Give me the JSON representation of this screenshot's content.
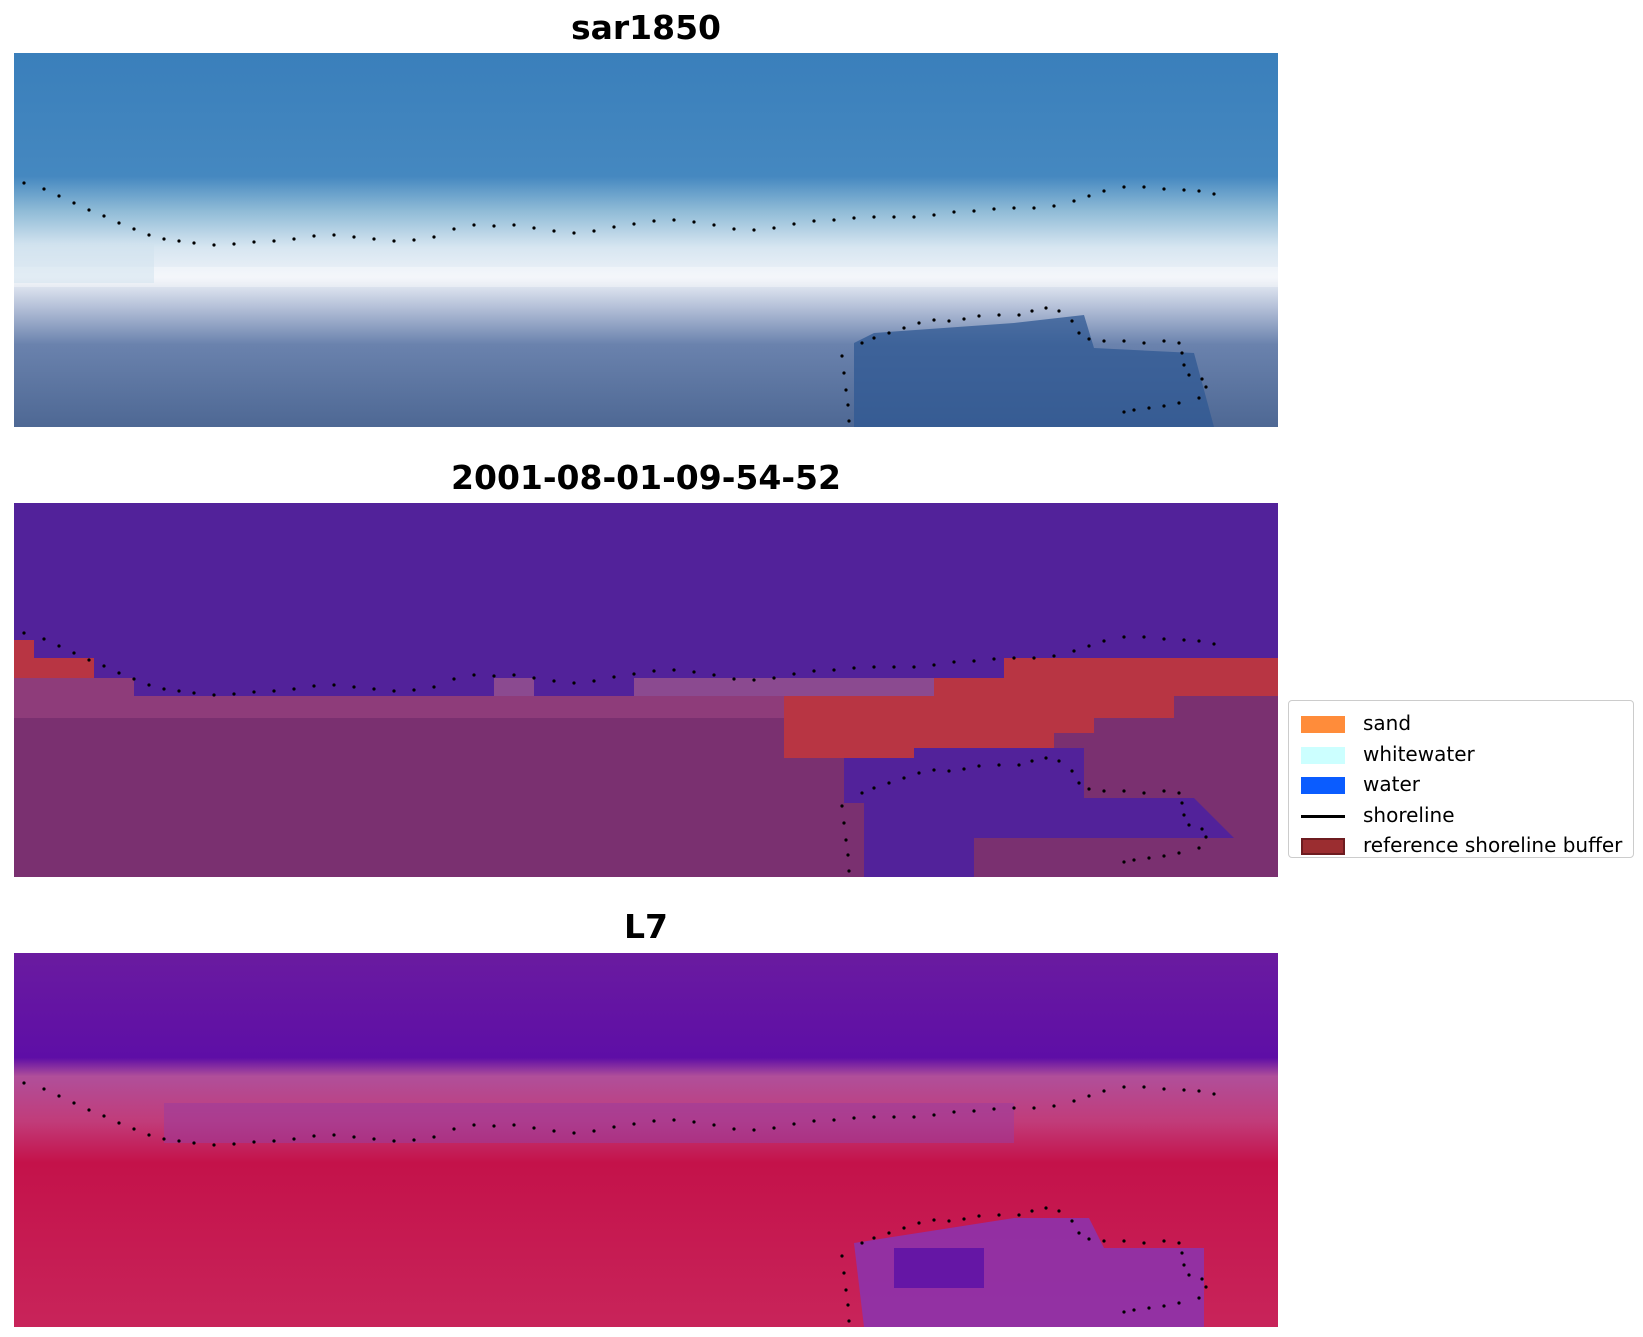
{
  "panels": [
    {
      "title": "sar1850"
    },
    {
      "title": "2001-08-01-09-54-52"
    },
    {
      "title": "L7"
    }
  ],
  "legend": {
    "items": [
      {
        "label": "sand",
        "color": "#ff8c3a",
        "kind": "patch"
      },
      {
        "label": "whitewater",
        "color": "#ccffff",
        "kind": "patch"
      },
      {
        "label": "water",
        "color": "#0a5cff",
        "kind": "patch"
      },
      {
        "label": "shoreline",
        "color": "#000000",
        "kind": "line"
      },
      {
        "label": "reference shoreline buffer",
        "color": "#9b2d30",
        "kind": "patch"
      }
    ]
  },
  "colors": {
    "sky_blue": "#3f84bf",
    "surf_white": "#e8eef6",
    "deep_blue": "#3c5f92",
    "class_purple": "#52229a",
    "buffer_red": "#b83543",
    "land_mauve": "#7a3070",
    "index_purple": "#6a1aa0",
    "index_red": "#c31440",
    "shoreline_dots": "#000000"
  }
}
